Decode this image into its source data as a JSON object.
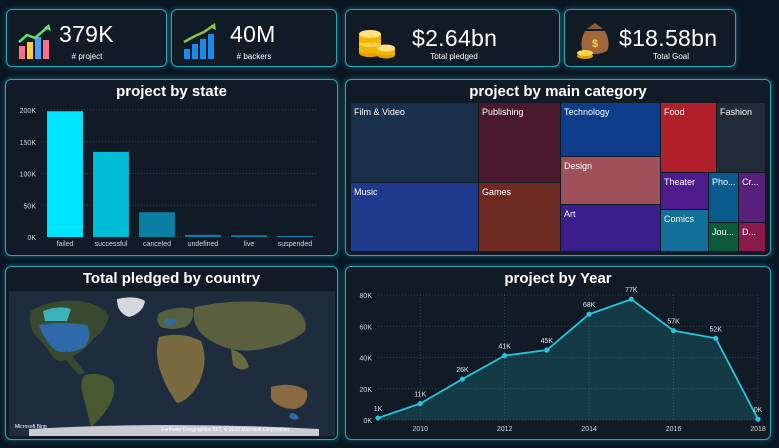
{
  "kpis": [
    {
      "value": "379K",
      "label": "# project",
      "icon": "bar-chart-growth-icon"
    },
    {
      "value": "40M",
      "label": "# backers",
      "icon": "bar-chart-arrow-icon"
    },
    {
      "value": "$2.64bn",
      "label": "Total pledged",
      "icon": "gold-coins-icon"
    },
    {
      "value": "$18.58bn",
      "label": "Total Goal",
      "icon": "money-bag-coins-icon"
    }
  ],
  "state_panel": {
    "title": "project by state"
  },
  "category_panel": {
    "title": "project by main category"
  },
  "country_panel": {
    "title": "Total pledged by country",
    "credit_left": "Microsoft Bing",
    "credit_right": "Earthstar Geographics SIO, © 2020 Microsoft Corporation"
  },
  "year_panel": {
    "title": "project by Year"
  },
  "colors": {
    "accent": "#2aa6b8",
    "bar_primary": "#00e5ff",
    "line": "#26c6da"
  },
  "treemap": [
    {
      "label": "Film & Video",
      "color": "#1a2f4a"
    },
    {
      "label": "Publishing",
      "color": "#4a1a2c"
    },
    {
      "label": "Technology",
      "color": "#0d3d8a"
    },
    {
      "label": "Food",
      "color": "#b0202a"
    },
    {
      "label": "Fashion",
      "color": "#222c38"
    },
    {
      "label": "Design",
      "color": "#a0505a"
    },
    {
      "label": "Music",
      "color": "#1f3a8c"
    },
    {
      "label": "Games",
      "color": "#6e2a22"
    },
    {
      "label": "Art",
      "color": "#3a1f8a"
    },
    {
      "label": "Theater",
      "color": "#4e1a8c"
    },
    {
      "label": "Pho...",
      "color": "#0a5a8c"
    },
    {
      "label": "Cr...",
      "color": "#5a1f7a"
    },
    {
      "label": "Comics",
      "color": "#136e9a"
    },
    {
      "label": "Jou...",
      "color": "#0c5a3a"
    },
    {
      "label": "D...",
      "color": "#8a1a4a"
    }
  ],
  "chart_data": [
    {
      "type": "bar",
      "title": "project by state",
      "categories": [
        "failed",
        "successful",
        "canceled",
        "undefined",
        "live",
        "suspended"
      ],
      "values": [
        198000,
        134000,
        39000,
        3500,
        2800,
        1800
      ],
      "ylim": [
        0,
        200000
      ],
      "y_ticks": [
        "0K",
        "50K",
        "100K",
        "150K",
        "200K"
      ],
      "grid": true
    },
    {
      "type": "area",
      "title": "project by Year",
      "x": [
        2009,
        2010,
        2011,
        2012,
        2013,
        2014,
        2015,
        2016,
        2017,
        2018
      ],
      "values": [
        1300,
        10500,
        26200,
        41200,
        44800,
        67700,
        77300,
        57200,
        52300,
        500
      ],
      "data_labels": [
        "1K",
        "11K",
        "26K",
        "41K",
        "45K",
        "68K",
        "77K",
        "57K",
        "52K",
        "0K"
      ],
      "x_ticks": [
        "2010",
        "2012",
        "2014",
        "2016",
        "2018"
      ],
      "y_ticks": [
        "0K",
        "20K",
        "40K",
        "60K",
        "80K"
      ],
      "ylim": [
        0,
        80000
      ],
      "grid": true
    }
  ]
}
